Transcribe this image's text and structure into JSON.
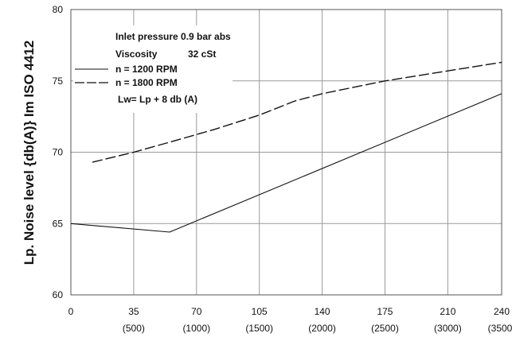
{
  "chart_data": {
    "type": "line",
    "title": "",
    "ylabel": "Lp. Noise level {db(A)} Im ISO 4412",
    "xlabel": "",
    "ylim": [
      60,
      80
    ],
    "xlim": [
      0,
      240
    ],
    "grid": true,
    "legend_placement": "top-left",
    "y_ticks": [
      "60",
      "65",
      "70",
      "75",
      "80"
    ],
    "x_ticks": [
      {
        "value": 0,
        "label": "0",
        "sublabel": ""
      },
      {
        "value": 35,
        "label": "35",
        "sublabel": "(500)"
      },
      {
        "value": 70,
        "label": "70",
        "sublabel": "(1000)"
      },
      {
        "value": 105,
        "label": "105",
        "sublabel": "(1500)"
      },
      {
        "value": 140,
        "label": "140",
        "sublabel": "(2000)"
      },
      {
        "value": 175,
        "label": "175",
        "sublabel": "(2500)"
      },
      {
        "value": 210,
        "label": "210",
        "sublabel": "(3000)"
      },
      {
        "value": 240,
        "label": "240",
        "sublabel": "(3500)"
      }
    ],
    "annotations": [
      "Inlet pressure 0.9 bar abs",
      "Viscosity",
      "32 cSt",
      "Lw= Lp + 8 db (A)"
    ],
    "series": [
      {
        "name": "n = 1200 RPM",
        "dash": "solid",
        "points": [
          [
            0,
            65.0
          ],
          [
            55,
            64.4
          ],
          [
            240,
            74.1
          ]
        ]
      },
      {
        "name": "n = 1800 RPM",
        "dash": "dashed",
        "points": [
          [
            12,
            69.3
          ],
          [
            35,
            70.0
          ],
          [
            55,
            70.7
          ],
          [
            80,
            71.6
          ],
          [
            105,
            72.6
          ],
          [
            125,
            73.6
          ],
          [
            140,
            74.1
          ],
          [
            175,
            75.0
          ],
          [
            210,
            75.7
          ],
          [
            240,
            76.3
          ]
        ]
      }
    ]
  }
}
